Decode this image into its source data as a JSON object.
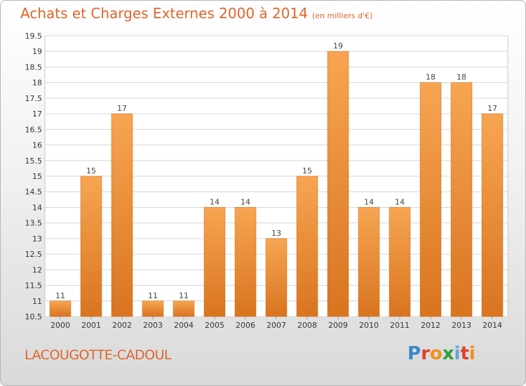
{
  "title": "Achats et Charges Externes 2000 à 2014",
  "unit": "(en milliers d'€)",
  "commune": "LACOUGOTTE-CADOUL",
  "logo": {
    "letters": [
      "P",
      "r",
      "o",
      "x",
      "i",
      "t",
      "i"
    ],
    "colors": [
      "#3a87c9",
      "#e2402b",
      "#ef8f1d",
      "#2f9e3c",
      "#5fa8d8",
      "#e2402b",
      "#ef8f1d"
    ]
  },
  "colors": {
    "accent": "#e0652c",
    "bar_top": "#f7a552",
    "bar_bottom": "#d9741f"
  },
  "chart_data": {
    "type": "bar",
    "title": "Achats et Charges Externes 2000 à 2014",
    "categories": [
      "2000",
      "2001",
      "2002",
      "2003",
      "2004",
      "2005",
      "2006",
      "2007",
      "2008",
      "2009",
      "2010",
      "2011",
      "2012",
      "2013",
      "2014"
    ],
    "values": [
      11,
      15,
      17,
      11,
      11,
      14,
      14,
      13,
      15,
      19,
      14,
      14,
      18,
      18,
      17
    ],
    "ylim": [
      10.5,
      19.5
    ],
    "yticks": [
      "10.5",
      "11",
      "11.5",
      "12",
      "12.5",
      "13",
      "13.5",
      "14",
      "14.5",
      "15",
      "15.5",
      "16",
      "16.5",
      "17",
      "17.5",
      "18",
      "18.5",
      "19",
      "19.5"
    ],
    "grid": true,
    "xlabel": "",
    "ylabel": ""
  }
}
